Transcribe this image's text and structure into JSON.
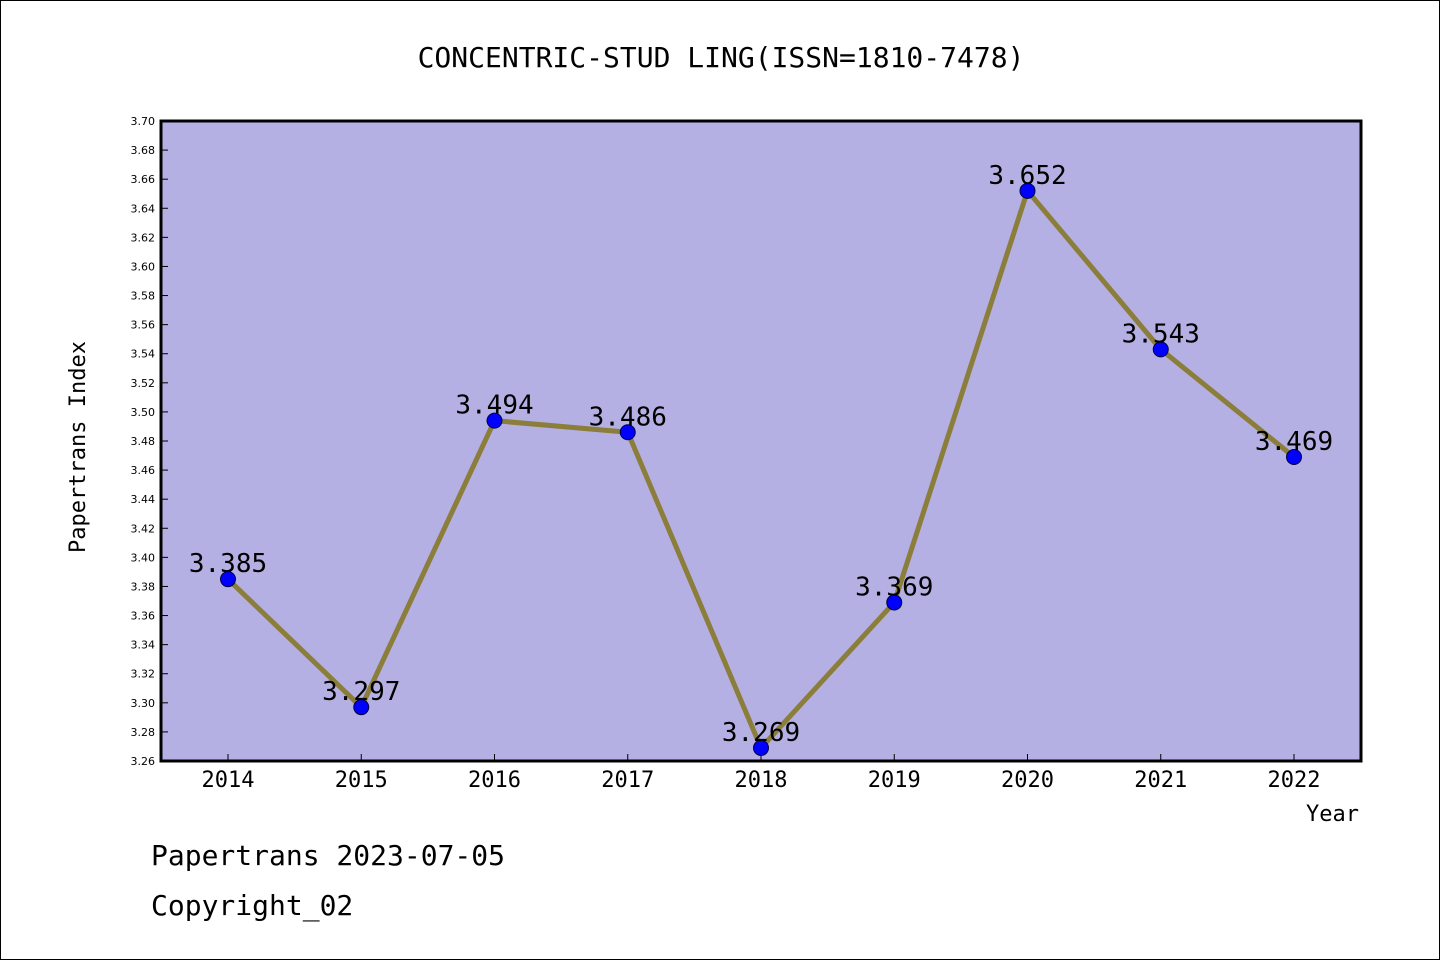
{
  "chart_data": {
    "type": "line",
    "title": "CONCENTRIC-STUD LING(ISSN=1810-7478)",
    "xlabel": "Year",
    "ylabel": "Papertrans Index",
    "categories": [
      "2014",
      "2015",
      "2016",
      "2017",
      "2018",
      "2019",
      "2020",
      "2021",
      "2022"
    ],
    "values": [
      3.385,
      3.297,
      3.494,
      3.486,
      3.269,
      3.369,
      3.652,
      3.543,
      3.469
    ],
    "value_labels": [
      "3.385",
      "3.297",
      "3.494",
      "3.486",
      "3.269",
      "3.369",
      "3.652",
      "3.543",
      "3.469"
    ],
    "ylim": [
      3.26,
      3.7
    ],
    "ytick_step": 0.02,
    "grid": false,
    "legend": "none",
    "colors": {
      "plot_background": "#b5b0e3",
      "line": "#8b7d3a",
      "marker": "#0000ff"
    }
  },
  "footer": {
    "date_line": "Papertrans 2023-07-05",
    "copyright_line": "Copyright_02"
  }
}
